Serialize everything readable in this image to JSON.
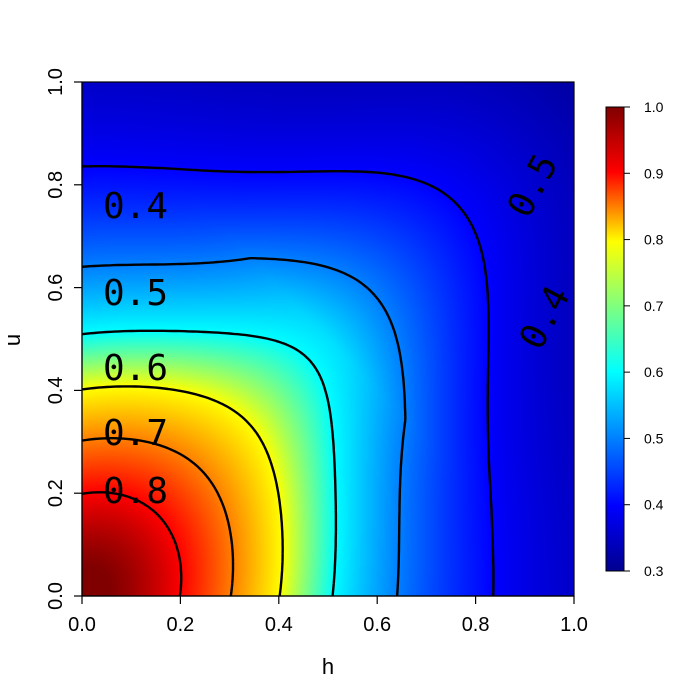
{
  "chart_data": {
    "type": "heatmap",
    "title": "",
    "xlabel": "h",
    "ylabel": "u",
    "xlim": [
      0,
      1
    ],
    "ylim": [
      0,
      1
    ],
    "x_ticks": [
      "0.0",
      "0.2",
      "0.4",
      "0.6",
      "0.8",
      "1.0"
    ],
    "y_ticks": [
      "0.0",
      "0.2",
      "0.4",
      "0.6",
      "0.8",
      "1.0"
    ],
    "colorbar": {
      "range": [
        0.3,
        1.0
      ],
      "ticks": [
        "0.3",
        "0.4",
        "0.5",
        "0.6",
        "0.7",
        "0.8",
        "0.9",
        "1.0"
      ],
      "placement": "right"
    },
    "colormap": [
      "#00008f",
      "#0000ff",
      "#00ffff",
      "#ffff00",
      "#ff0000",
      "#800000"
    ],
    "grid": false,
    "contour_levels": [
      {
        "level": 0.9,
        "label": ""
      },
      {
        "level": 0.8,
        "label": "0.8"
      },
      {
        "level": 0.7,
        "label": "0.7"
      },
      {
        "level": 0.6,
        "label": "0.6"
      },
      {
        "level": 0.5,
        "label": "0.5"
      },
      {
        "level": 0.4,
        "label": "0.4"
      },
      {
        "level": 0.3,
        "label": ""
      }
    ],
    "extra_contour_labels": [
      "0.5",
      "0.4"
    ]
  }
}
